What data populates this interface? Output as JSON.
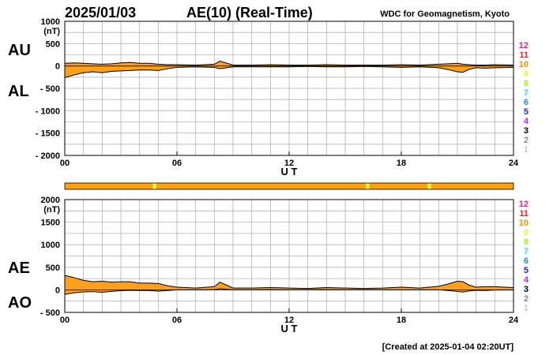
{
  "header": {
    "date": "2025/01/03",
    "title": "AE(10) (Real-Time)",
    "source": "WDC for Geomagnetism, Kyoto"
  },
  "footer": {
    "created": "[Created at 2025-01-04 02:20UT]"
  },
  "colors": {
    "fill": "#ff9f1c",
    "bar": "#ffa20f",
    "bar_highlight": "#f2ff44",
    "grid": "#b3b3b3",
    "line": "#000000"
  },
  "station_legend": [
    {
      "label": "12",
      "color": "#ff1a8c"
    },
    {
      "label": "11",
      "color": "#ff2020"
    },
    {
      "label": "10",
      "color": "#ff8c00"
    },
    {
      "label": "9",
      "color": "#f0f03c"
    },
    {
      "label": "8",
      "color": "#a8f028"
    },
    {
      "label": "7",
      "color": "#28e6d2"
    },
    {
      "label": "6",
      "color": "#1e8cff"
    },
    {
      "label": "5",
      "color": "#1e1eff"
    },
    {
      "label": "4",
      "color": "#c81ef0"
    },
    {
      "label": "3",
      "color": "#000000"
    },
    {
      "label": "2",
      "color": "#8c8c8c"
    },
    {
      "label": "1",
      "color": "#c8c8c8"
    }
  ],
  "station_bar": {
    "highlights_ut": [
      4.8,
      16.2,
      19.5
    ]
  },
  "chart_data": [
    {
      "type": "area",
      "id": "au_al",
      "upper_label": "AU",
      "lower_label": "AL",
      "ylabel": "(nT)",
      "xlabel": "U T",
      "xlim": [
        0,
        24
      ],
      "ylim": [
        -2000,
        1000
      ],
      "x_ticks": [
        "00",
        "06",
        "12",
        "18",
        "24"
      ],
      "y_ticks": [
        "1000",
        "500",
        "0",
        "- 500",
        "- 1000",
        "- 1500",
        "- 2000"
      ],
      "x_hours": [
        0,
        0.5,
        1,
        1.5,
        2,
        2.5,
        3,
        3.5,
        4,
        4.5,
        5,
        5.5,
        6,
        7,
        8,
        8.3,
        9,
        10,
        11,
        12,
        13,
        14,
        15,
        16,
        17,
        18,
        19,
        20,
        20.5,
        21,
        21.3,
        21.6,
        22,
        22.5,
        23,
        24
      ],
      "series": [
        {
          "name": "AU",
          "values": [
            60,
            70,
            60,
            50,
            40,
            50,
            70,
            80,
            60,
            60,
            40,
            30,
            30,
            20,
            40,
            110,
            20,
            20,
            30,
            20,
            20,
            30,
            20,
            20,
            20,
            30,
            20,
            40,
            50,
            60,
            40,
            30,
            20,
            20,
            30,
            20
          ]
        },
        {
          "name": "AL",
          "values": [
            -260,
            -200,
            -150,
            -130,
            -150,
            -120,
            -110,
            -100,
            -90,
            -90,
            -100,
            -60,
            -30,
            -20,
            -30,
            -60,
            -20,
            -20,
            -20,
            -20,
            -10,
            -20,
            -20,
            -10,
            -20,
            -30,
            -20,
            -40,
            -80,
            -130,
            -140,
            -80,
            -40,
            -50,
            -40,
            -30
          ]
        }
      ]
    },
    {
      "type": "area",
      "id": "ae_ao",
      "upper_label": "AE",
      "lower_label": "AO",
      "ylabel": "(nT)",
      "xlabel": "U T",
      "xlim": [
        0,
        24
      ],
      "ylim": [
        -500,
        2000
      ],
      "x_ticks": [
        "00",
        "06",
        "12",
        "18",
        "24"
      ],
      "y_ticks": [
        "2000",
        "1500",
        "1000",
        "500",
        "0",
        "- 500"
      ],
      "x_hours": [
        0,
        0.5,
        1,
        1.5,
        2,
        2.5,
        3,
        3.5,
        4,
        4.5,
        5,
        5.5,
        6,
        7,
        8,
        8.3,
        9,
        10,
        11,
        12,
        13,
        14,
        15,
        16,
        17,
        18,
        19,
        20,
        20.5,
        21,
        21.3,
        21.6,
        22,
        22.5,
        23,
        24
      ],
      "series": [
        {
          "name": "AE",
          "values": [
            320,
            270,
            210,
            180,
            190,
            170,
            180,
            180,
            150,
            150,
            140,
            90,
            60,
            40,
            70,
            170,
            40,
            40,
            50,
            40,
            30,
            50,
            40,
            30,
            40,
            60,
            40,
            80,
            130,
            190,
            180,
            110,
            60,
            70,
            70,
            50
          ]
        },
        {
          "name": "AO",
          "values": [
            -100,
            -65,
            -45,
            -40,
            -55,
            -35,
            -20,
            -10,
            -15,
            -15,
            -30,
            -15,
            0,
            0,
            5,
            25,
            0,
            0,
            5,
            0,
            5,
            5,
            0,
            5,
            0,
            0,
            0,
            0,
            -15,
            -35,
            -50,
            -25,
            -10,
            -15,
            -5,
            -5
          ]
        }
      ]
    }
  ]
}
